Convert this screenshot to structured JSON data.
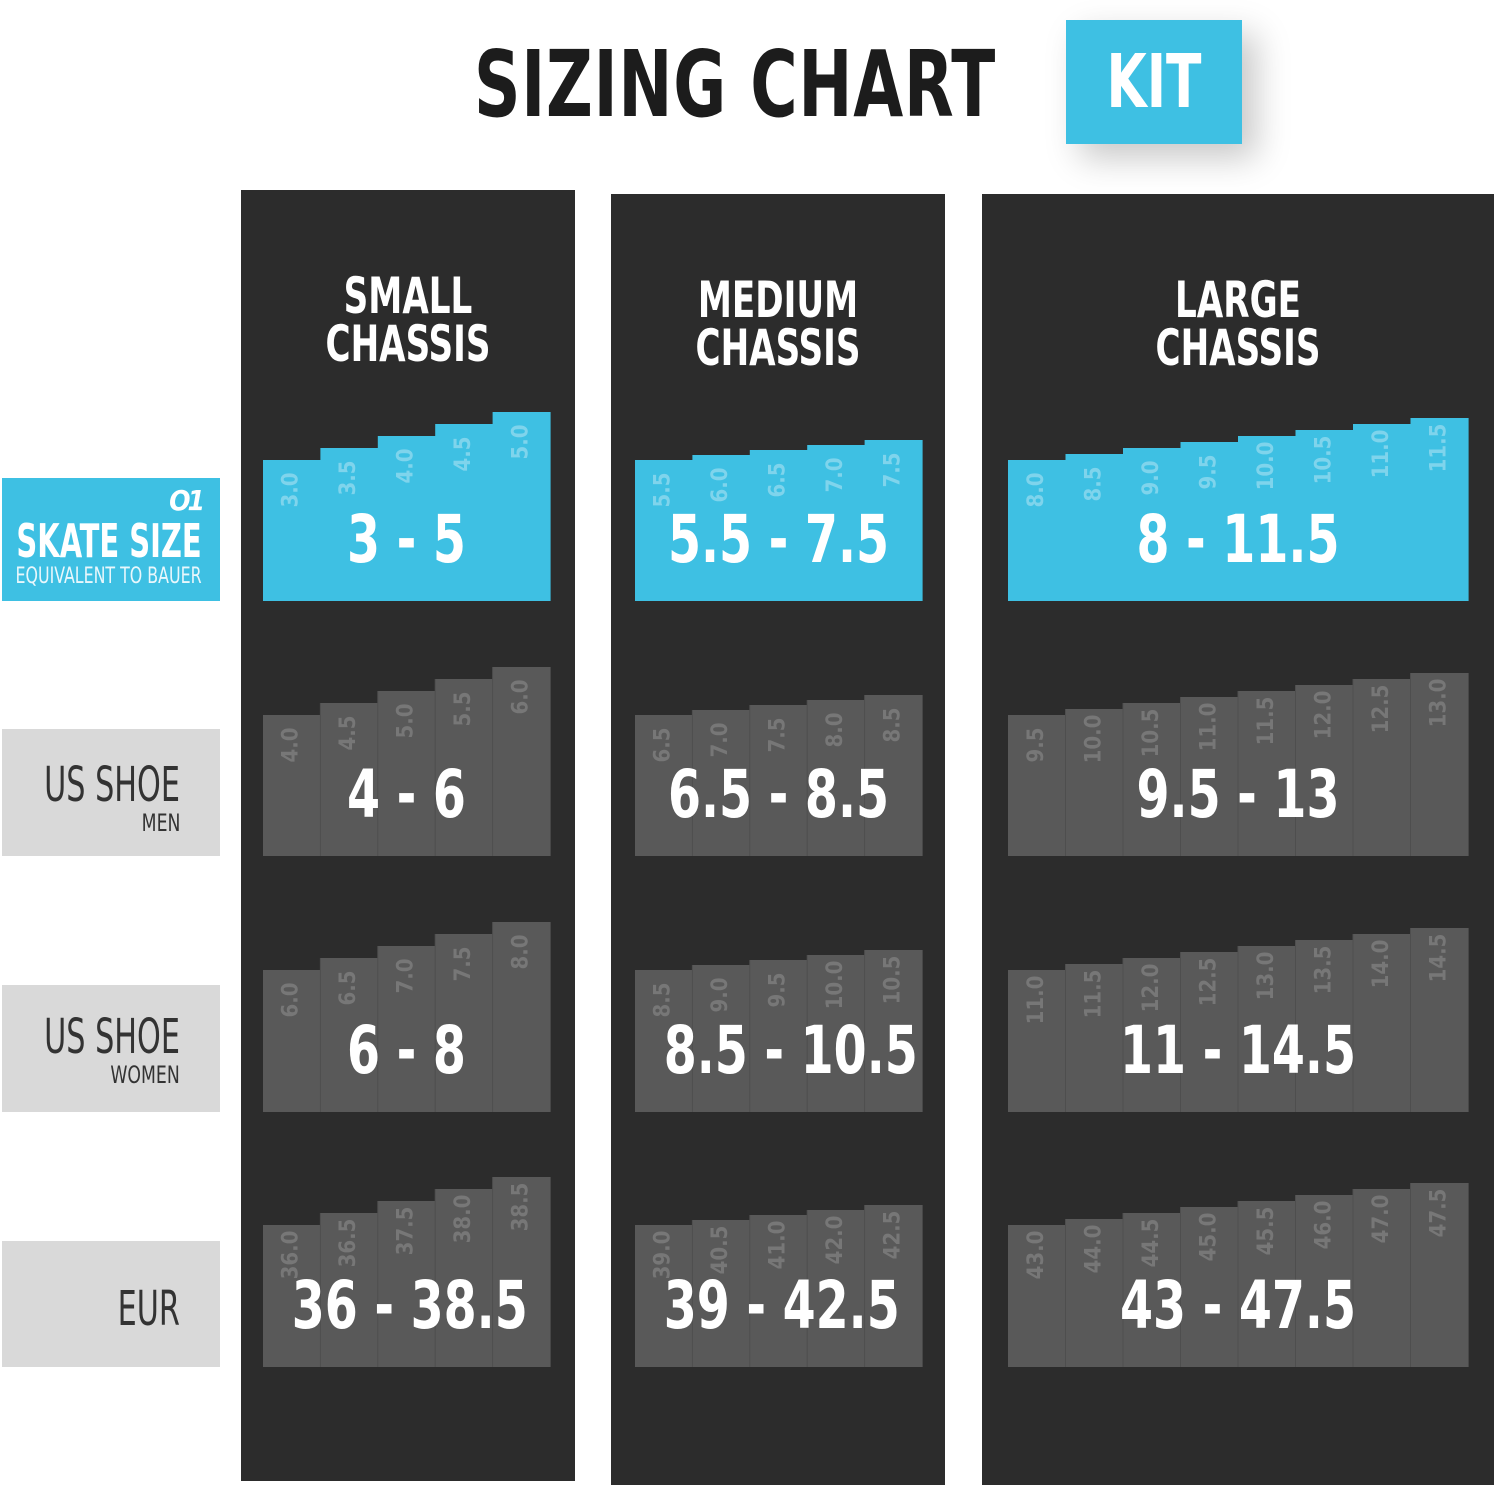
{
  "title": "SIZING CHART",
  "badge": "KIT",
  "brand_logo": "O1",
  "colors": {
    "accent": "#3ec0e3",
    "panel": "#2c2c2c",
    "cell": "#595959",
    "label_bg": "#d9d9d9"
  },
  "row_labels": [
    {
      "main": "SKATE SIZE",
      "sub": "EQUIVALENT TO BAUER"
    },
    {
      "main": "US SHOE",
      "sub": "MEN"
    },
    {
      "main": "US SHOE",
      "sub": "WOMEN"
    },
    {
      "main": "EUR",
      "sub": ""
    }
  ],
  "chart_data": {
    "type": "table",
    "title": "SIZING CHART",
    "columns": [
      {
        "name": [
          "SMALL",
          "CHASSIS"
        ],
        "rows": [
          {
            "range": "3 - 5",
            "sizes": [
              "3.0",
              "3.5",
              "4.0",
              "4.5",
              "5.0"
            ]
          },
          {
            "range": "4 - 6",
            "sizes": [
              "4.0",
              "4.5",
              "5.0",
              "5.5",
              "6.0"
            ]
          },
          {
            "range": "6 - 8",
            "sizes": [
              "6.0",
              "6.5",
              "7.0",
              "7.5",
              "8.0"
            ]
          },
          {
            "range": "36 - 38.5",
            "sizes": [
              "36.0",
              "36.5",
              "37.5",
              "38.0",
              "38.5"
            ]
          }
        ]
      },
      {
        "name": [
          "MEDIUM",
          "CHASSIS"
        ],
        "rows": [
          {
            "range": "5.5 - 7.5",
            "sizes": [
              "5.5",
              "6.0",
              "6.5",
              "7.0",
              "7.5"
            ]
          },
          {
            "range": "6.5 - 8.5",
            "sizes": [
              "6.5",
              "7.0",
              "7.5",
              "8.0",
              "8.5"
            ]
          },
          {
            "range": "8.5 - 10.5",
            "sizes": [
              "8.5",
              "9.0",
              "9.5",
              "10.0",
              "10.5"
            ]
          },
          {
            "range": "39 - 42.5",
            "sizes": [
              "39.0",
              "40.5",
              "41.0",
              "42.0",
              "42.5"
            ]
          }
        ]
      },
      {
        "name": [
          "LARGE",
          "CHASSIS"
        ],
        "rows": [
          {
            "range": "8 - 11.5",
            "sizes": [
              "8.0",
              "8.5",
              "9.0",
              "9.5",
              "10.0",
              "10.5",
              "11.0",
              "11.5"
            ]
          },
          {
            "range": "9.5 - 13",
            "sizes": [
              "9.5",
              "10.0",
              "10.5",
              "11.0",
              "11.5",
              "12.0",
              "12.5",
              "13.0"
            ]
          },
          {
            "range": "11 - 14.5",
            "sizes": [
              "11.0",
              "11.5",
              "12.0",
              "12.5",
              "13.0",
              "13.5",
              "14.0",
              "14.5"
            ]
          },
          {
            "range": "43 - 47.5",
            "sizes": [
              "43.0",
              "44.0",
              "44.5",
              "45.0",
              "45.5",
              "46.0",
              "47.0",
              "47.5"
            ]
          }
        ]
      }
    ]
  }
}
